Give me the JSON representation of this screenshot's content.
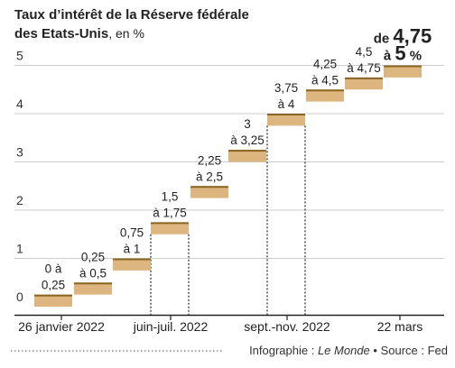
{
  "chart_data": {
    "type": "bar",
    "title": "Taux d’intérêt de la Réserve fédérale",
    "subtitle": "des Etats-Unis",
    "unit": ", en %",
    "ylim": [
      0,
      5
    ],
    "yticks": [
      "0",
      "1",
      "2",
      "3",
      "4",
      "5"
    ],
    "grid": true,
    "steps": [
      {
        "low": 0,
        "high": 0.25,
        "label_top": "0 à",
        "label_bottom": "0,25"
      },
      {
        "low": 0.25,
        "high": 0.5,
        "label_top": "0,25",
        "label_bottom": "à 0,5"
      },
      {
        "low": 0.75,
        "high": 1,
        "label_top": "0,75",
        "label_bottom": "à 1"
      },
      {
        "low": 1.5,
        "high": 1.75,
        "label_top": "1,5",
        "label_bottom": "à 1,75"
      },
      {
        "low": 2.25,
        "high": 2.5,
        "label_top": "2,25",
        "label_bottom": "à 2,5"
      },
      {
        "low": 3,
        "high": 3.25,
        "label_top": "3",
        "label_bottom": "à 3,25"
      },
      {
        "low": 3.75,
        "high": 4,
        "label_top": "3,75",
        "label_bottom": "à 4"
      },
      {
        "low": 4.25,
        "high": 4.5,
        "label_top": "4,25",
        "label_bottom": "à 4,5"
      },
      {
        "low": 4.5,
        "high": 4.75,
        "label_top": "4,5",
        "label_bottom": "à 4,75"
      },
      {
        "low": 4.75,
        "high": 5,
        "label_top": "4,75",
        "label_bottom": "à 5"
      }
    ],
    "last_label": {
      "prefix_top": "de ",
      "value_top": "4,75",
      "prefix_bottom": "à ",
      "value_bottom": "5",
      "suffix_bottom": " %"
    },
    "x_labels": [
      "26 janvier 2022",
      "juin-juil. 2022",
      "sept.-nov. 2022",
      "22 mars"
    ],
    "colors": {
      "bar_fill": "#ddb67f",
      "bar_top": "#8a6420",
      "grid": "#bbbbbb",
      "axis": "#222222"
    }
  },
  "footer": {
    "credit_prefix": "Infographie : ",
    "credit_source": "Le Monde",
    "separator": " • ",
    "source": "Source : Fed"
  }
}
